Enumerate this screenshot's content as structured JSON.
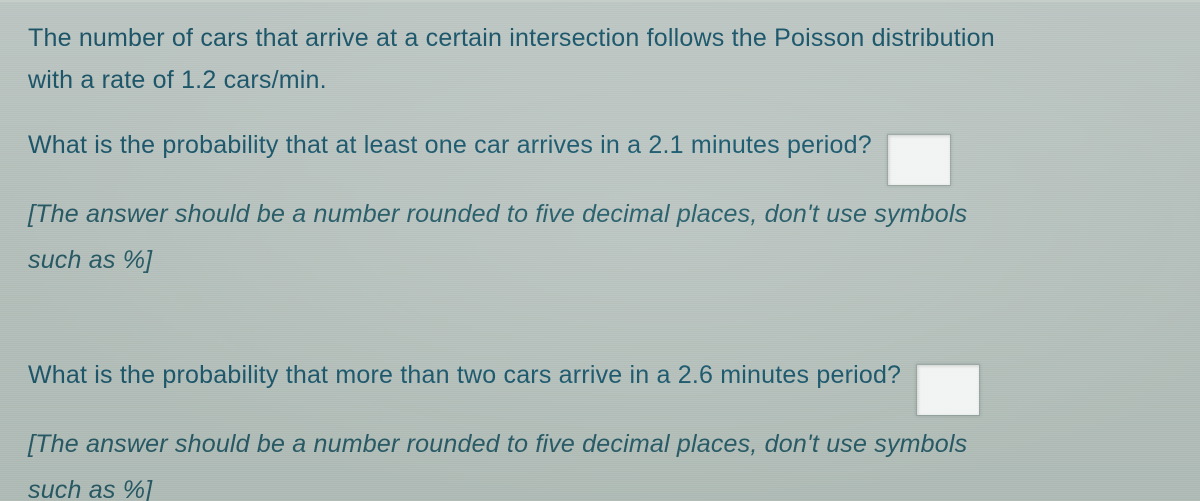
{
  "colors": {
    "background_top": "#bfc8c5",
    "background_bottom": "#b3beb9",
    "text_primary": "#1f5a6e",
    "text_hint": "#2a5d68",
    "input_bg": "#f1f4f2",
    "input_border": "#9aa7a2"
  },
  "typography": {
    "font_family": "Century Gothic / geometric sans",
    "body_size_pt": 19,
    "line_height": 1.45,
    "hint_style": "italic"
  },
  "intro": {
    "line1": "The number of cars that arrive at a certain intersection follows the Poisson distribution",
    "line2": "with a rate of 1.2 cars/min."
  },
  "question1": {
    "text": "What is the probability that at least one car arrives in a 2.1 minutes period?",
    "hint_line1": "[The answer should be a number rounded to five decimal places, don't use symbols",
    "hint_line2": "such as %]",
    "answer_value": ""
  },
  "question2": {
    "text": "What is the probability that more than two cars arrive in a 2.6 minutes period?",
    "hint_line1": "[The answer should be a number rounded to five decimal places, don't use symbols",
    "hint_line2": "such as %]",
    "answer_value": ""
  }
}
